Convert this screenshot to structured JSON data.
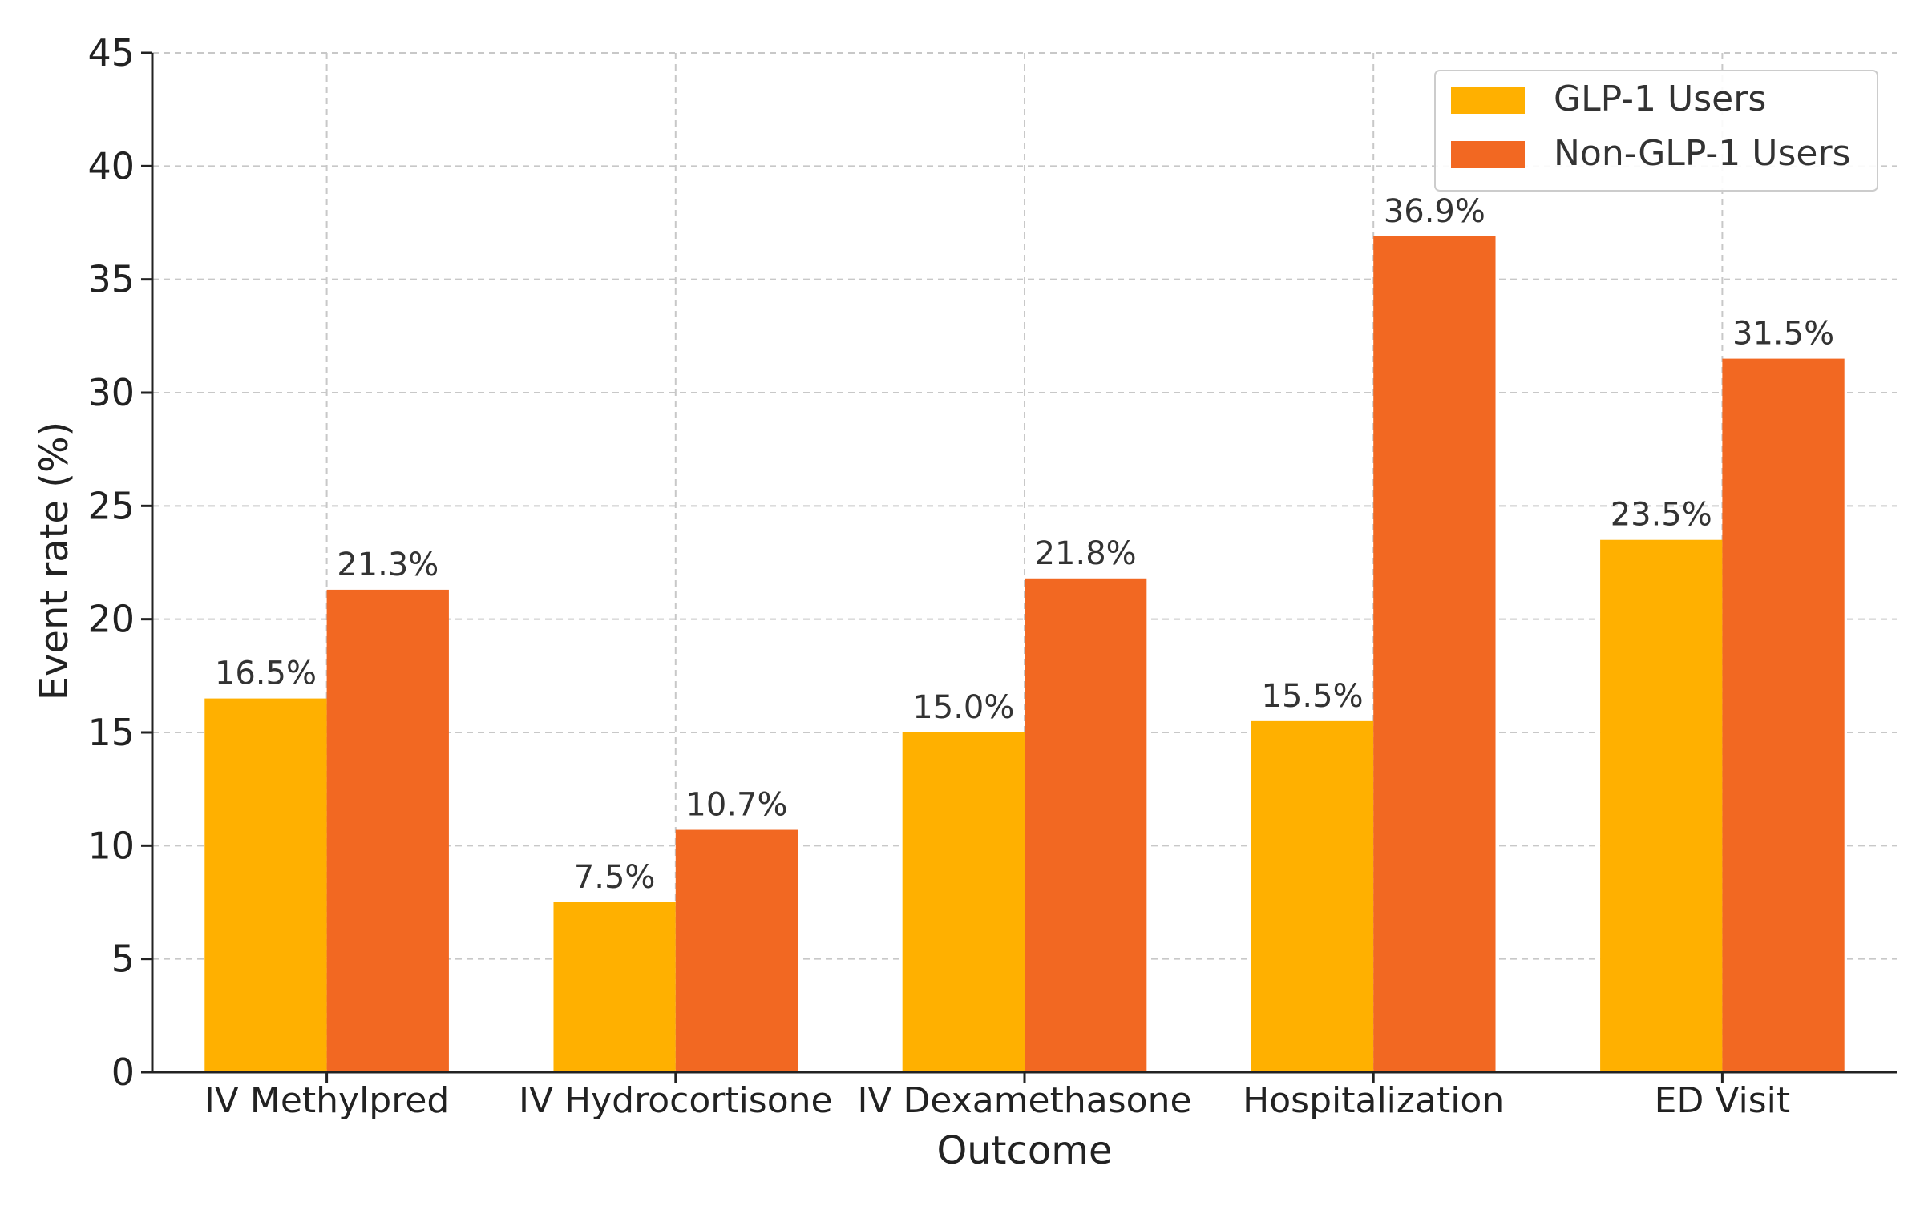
{
  "chart_data": {
    "type": "bar",
    "title": "",
    "xlabel": "Outcome",
    "ylabel": "Event rate (%)",
    "ylim": [
      0,
      45
    ],
    "yticks": [
      0,
      5,
      10,
      15,
      20,
      25,
      30,
      35,
      40,
      45
    ],
    "grid": true,
    "legend_position": "top-right",
    "categories": [
      "IV Methylpred",
      "IV Hydrocortisone",
      "IV Dexamethasone",
      "Hospitalization",
      "ED Visit"
    ],
    "series": [
      {
        "name": "GLP-1 Users",
        "color": "#FFB000",
        "values": [
          16.5,
          7.5,
          15.0,
          15.5,
          23.5
        ],
        "labels": [
          "16.5%",
          "7.5%",
          "15.0%",
          "15.5%",
          "23.5%"
        ]
      },
      {
        "name": "Non-GLP-1 Users",
        "color": "#F26822",
        "values": [
          21.3,
          10.7,
          21.8,
          36.9,
          31.5
        ],
        "labels": [
          "21.3%",
          "10.7%",
          "21.8%",
          "36.9%",
          "31.5%"
        ]
      }
    ]
  }
}
